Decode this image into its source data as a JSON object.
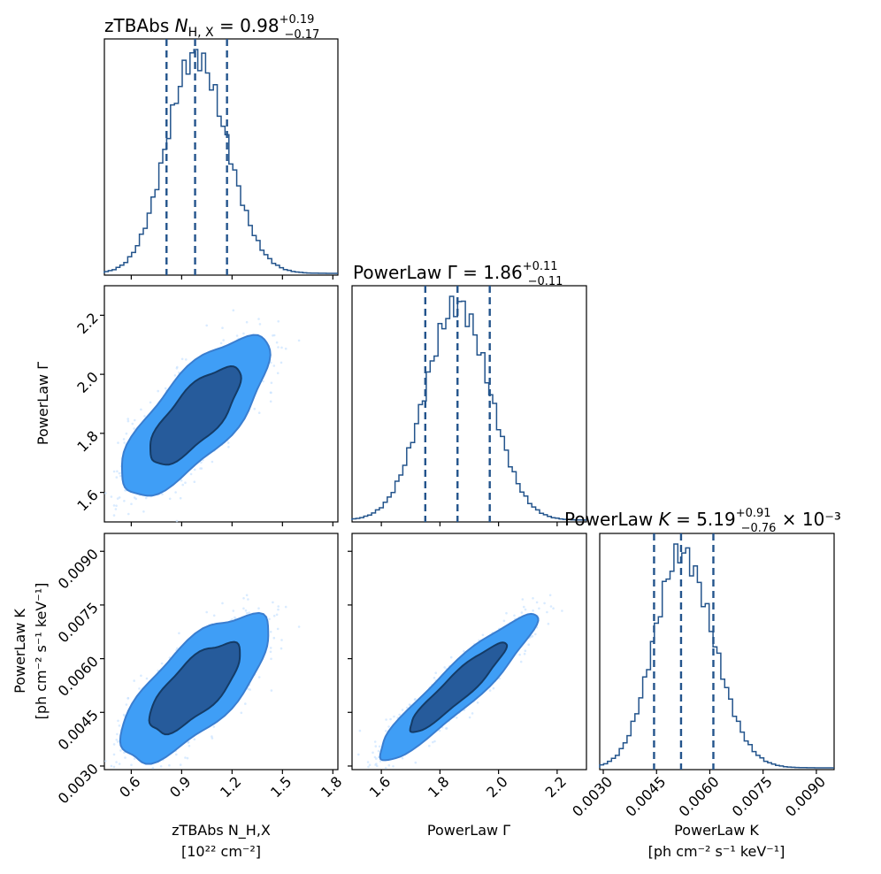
{
  "chart_data": {
    "type": "corner",
    "parameters": [
      {
        "key": "nh",
        "title_prefix": "zTBAbs ",
        "title_symbol": "N",
        "title_sub": "H, X",
        "title_value": " = 0.98",
        "err_plus": "+0.19",
        "err_minus": "−0.17",
        "title_suffix": "",
        "axis_label": "zTBAbs N_H,X",
        "axis_units": "[10²² cm⁻²]",
        "median": 0.98,
        "q16": 0.81,
        "q84": 1.17,
        "range": [
          0.44,
          1.83
        ],
        "ticks": [
          0.6,
          0.9,
          1.2,
          1.5,
          1.8
        ],
        "tick_labels": [
          "0.6",
          "0.9",
          "1.2",
          "1.5",
          "1.8"
        ]
      },
      {
        "key": "gamma",
        "title_prefix": "PowerLaw Γ = 1.86",
        "err_plus": "+0.11",
        "err_minus": "−0.11",
        "title_suffix": "",
        "axis_label": "PowerLaw Γ",
        "axis_units": "",
        "median": 1.86,
        "q16": 1.75,
        "q84": 1.97,
        "range": [
          1.5,
          2.3
        ],
        "ticks": [
          1.6,
          1.8,
          2.0,
          2.2
        ],
        "tick_labels": [
          "1.6",
          "1.8",
          "2.0",
          "2.2"
        ]
      },
      {
        "key": "norm",
        "title_prefix": "PowerLaw ",
        "title_symbol": "K",
        "title_value": " = 5.19",
        "err_plus": "+0.91",
        "err_minus": "−0.76",
        "title_suffix": " × 10⁻³",
        "axis_label": "PowerLaw K",
        "axis_units": "[ph cm⁻² s⁻¹ keV⁻¹]",
        "median": 0.00519,
        "q16": 0.00443,
        "q84": 0.0061,
        "range": [
          0.0029,
          0.0095
        ],
        "ticks": [
          0.003,
          0.0045,
          0.006,
          0.0075,
          0.009
        ],
        "tick_labels": [
          "0.0030",
          "0.0045",
          "0.0060",
          "0.0075",
          "0.0090"
        ]
      }
    ],
    "contour_levels": [
      "68%",
      "95%"
    ],
    "colors": {
      "hist_line": "#23548c",
      "contour_inner": "#265b9b",
      "contour_outer": "#3f9ef6",
      "scatter_points": "#c9e3ff"
    }
  }
}
